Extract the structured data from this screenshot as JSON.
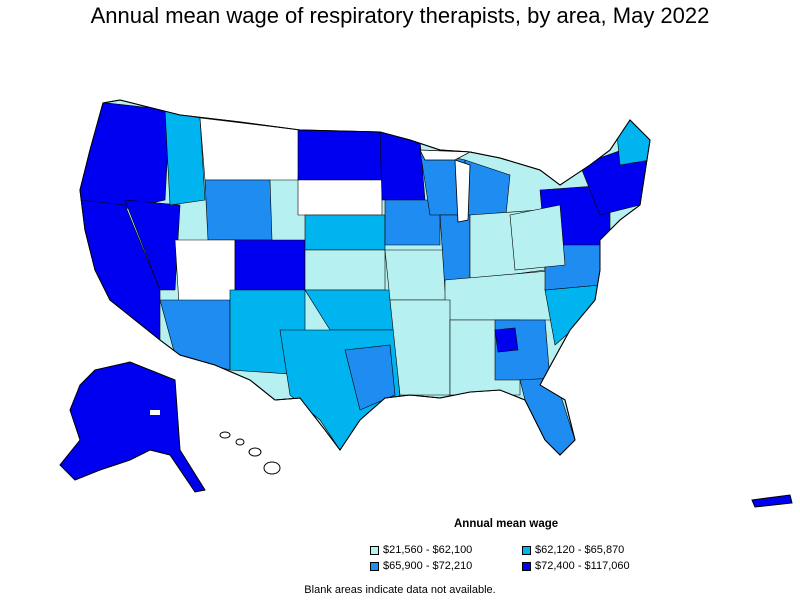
{
  "title": "Annual mean wage of respiratory therapists, by area, May 2022",
  "legend": {
    "title": "Annual mean wage",
    "items": [
      {
        "label": "$21,560 - $62,100",
        "color": "#b6f0f0"
      },
      {
        "label": "$62,120 - $65,870",
        "color": "#00b4f0"
      },
      {
        "label": "$65,900 - $72,210",
        "color": "#1e8cf0"
      },
      {
        "label": "$72,400 - $117,060",
        "color": "#0000f0"
      }
    ]
  },
  "footnote": "Blank areas indicate data not available.",
  "colors": {
    "tier1": "#b6f0f0",
    "tier2": "#00b4f0",
    "tier3": "#1e8cf0",
    "tier4": "#0000f0",
    "blank": "#ffffff",
    "border": "#000000"
  }
}
